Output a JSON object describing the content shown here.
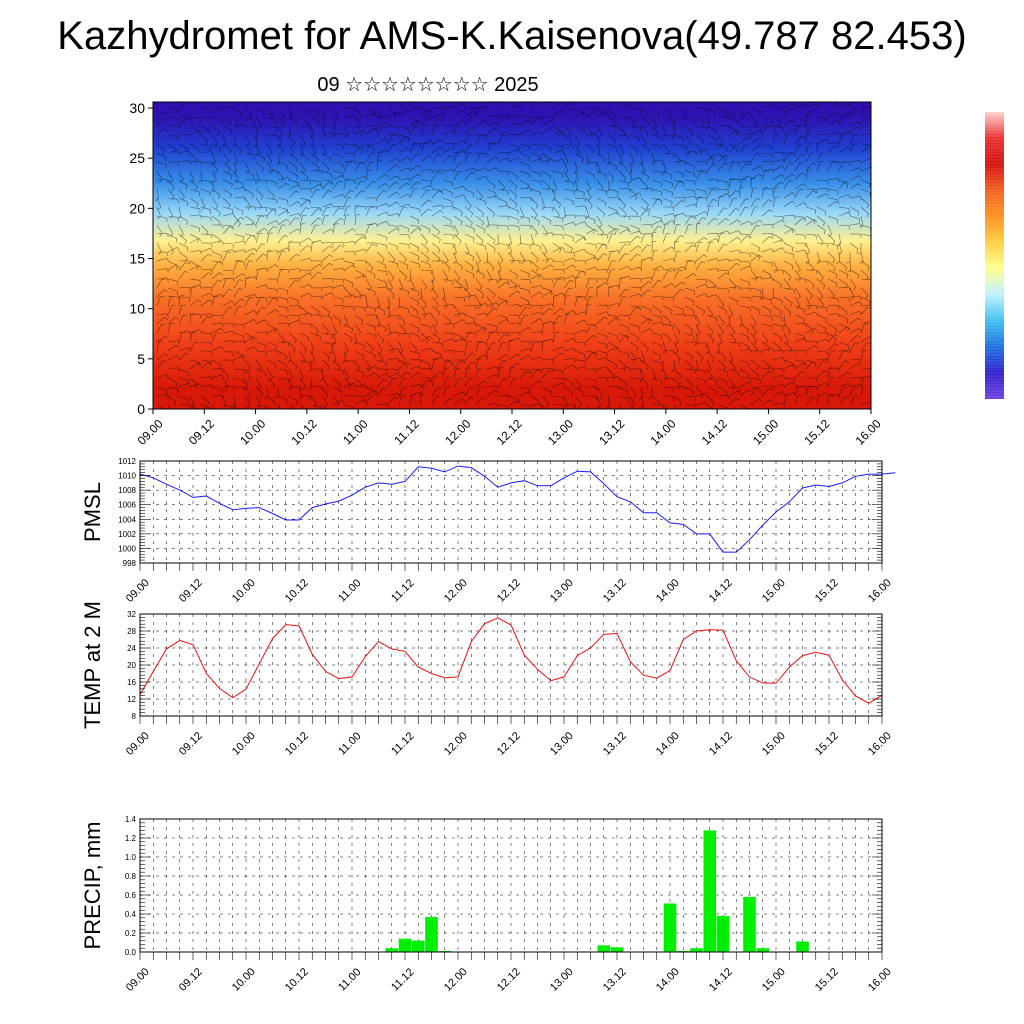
{
  "title": "Kazhydromet for AMS-K.Kaisenova(49.787 82.453)",
  "subtitle": "09 ☆☆☆☆☆☆☆☆ 2025",
  "colorbar_colors": [
    "#ffd0d0",
    "#e83030",
    "#d61010",
    "#f06020",
    "#ff9020",
    "#ffd040",
    "#ffff90",
    "#c0f0ff",
    "#40c0f0",
    "#1e70e0",
    "#3020d0",
    "#7040e0"
  ],
  "chart_data": [
    {
      "type": "heatmap",
      "title": "",
      "xlabel": "",
      "ylabel": "",
      "x_ticks": [
        "09.00",
        "09.12",
        "10.00",
        "10.12",
        "11.00",
        "11.12",
        "12.00",
        "12.12",
        "13.00",
        "13.12",
        "14.00",
        "14.12",
        "15.00",
        "15.12",
        "16.00"
      ],
      "y_ticks": [
        "0",
        "5",
        "10",
        "15",
        "20",
        "25",
        "30"
      ],
      "ylim": [
        0,
        30.6
      ],
      "color_bands_bottom_to_top": [
        "#d81808",
        "#f04018",
        "#f87028",
        "#ffb040",
        "#fff090",
        "#9ad8f8",
        "#3890e8",
        "#2040d0",
        "#3010b0"
      ],
      "band_edges": [
        0,
        4,
        9,
        13,
        15.5,
        18,
        21,
        24,
        28,
        30.6
      ],
      "overlay": "wind barbs",
      "legend": "colorbar right"
    },
    {
      "type": "line",
      "title": "",
      "ylabel": "PMSL",
      "ylim": [
        998,
        1012
      ],
      "y_ticks": [
        "998",
        "1000",
        "1002",
        "1004",
        "1006",
        "1008",
        "1010",
        "1012"
      ],
      "x_ticks": [
        "09.00",
        "09.12",
        "10.00",
        "10.12",
        "11.00",
        "11.12",
        "12.00",
        "12.12",
        "13.00",
        "13.12",
        "14.00",
        "14.12",
        "15.00",
        "15.12",
        "16.00"
      ],
      "color": "#1a1aff",
      "grid": true,
      "values": [
        1010.2,
        1009.7,
        1008.8,
        1008.0,
        1007.0,
        1007.2,
        1006.2,
        1005.3,
        1005.5,
        1005.6,
        1004.8,
        1003.9,
        1003.9,
        1005.6,
        1006.1,
        1006.5,
        1007.3,
        1008.4,
        1009.0,
        1008.8,
        1009.2,
        1011.2,
        1011.0,
        1010.5,
        1011.3,
        1011.1,
        1009.9,
        1008.4,
        1009.0,
        1009.3,
        1008.6,
        1008.6,
        1009.7,
        1010.6,
        1010.5,
        1008.9,
        1007.1,
        1006.4,
        1004.9,
        1004.9,
        1003.5,
        1003.3,
        1002.0,
        1002.0,
        999.5,
        999.5,
        1001.2,
        1003.2,
        1005.0,
        1006.4,
        1008.3,
        1008.7,
        1008.5,
        1009.0,
        1009.9,
        1010.2,
        1010.2,
        1010.4
      ]
    },
    {
      "type": "line",
      "title": "",
      "ylabel": "TEMP at 2 M",
      "ylim": [
        8,
        32
      ],
      "y_ticks": [
        "8",
        "12",
        "16",
        "20",
        "24",
        "28",
        "32"
      ],
      "x_ticks": [
        "09.00",
        "09.12",
        "10.00",
        "10.12",
        "11.00",
        "11.12",
        "12.00",
        "12.12",
        "13.00",
        "13.12",
        "14.00",
        "14.12",
        "15.00",
        "15.12",
        "16.00"
      ],
      "color": "#e81010",
      "grid": true,
      "values": [
        13.0,
        18.5,
        23.8,
        25.8,
        24.8,
        18.0,
        14.5,
        12.3,
        14.3,
        20.3,
        26.2,
        29.5,
        29.2,
        22.5,
        18.5,
        16.8,
        17.2,
        22.0,
        25.5,
        23.8,
        23.2,
        19.5,
        18.0,
        17.0,
        17.2,
        25.5,
        29.7,
        31.1,
        29.4,
        22.3,
        19.0,
        16.3,
        17.2,
        22.2,
        24.0,
        27.2,
        27.4,
        20.8,
        17.6,
        16.9,
        18.7,
        26.0,
        28.0,
        28.3,
        28.2,
        21.0,
        17.2,
        15.8,
        15.7,
        19.5,
        22.2,
        23.0,
        22.3,
        16.5,
        12.7,
        11.0,
        12.9
      ]
    },
    {
      "type": "bar",
      "title": "",
      "ylabel": "PRECIP, mm",
      "ylim": [
        0,
        1.4
      ],
      "y_ticks": [
        "0.0",
        "0.2",
        "0.4",
        "0.6",
        "0.8",
        "1.0",
        "1.2",
        "1.4"
      ],
      "x_ticks": [
        "09.00",
        "09.12",
        "10.00",
        "10.12",
        "11.00",
        "11.12",
        "12.00",
        "12.12",
        "13.00",
        "13.12",
        "14.00",
        "14.12",
        "15.00",
        "15.12",
        "16.00"
      ],
      "color": "#00ee00",
      "grid": true,
      "values": [
        0,
        0,
        0,
        0,
        0,
        0,
        0,
        0,
        0,
        0,
        0,
        0,
        0,
        0,
        0,
        0,
        0,
        0,
        0,
        0.04,
        0.14,
        0.12,
        0.37,
        0.01,
        0,
        0,
        0,
        0,
        0,
        0,
        0,
        0,
        0,
        0,
        0,
        0.07,
        0.05,
        0,
        0,
        0,
        0.51,
        0.01,
        0.04,
        1.28,
        0.38,
        0,
        0.58,
        0.04,
        0,
        0,
        0.11,
        0,
        0,
        0,
        0,
        0,
        0
      ]
    }
  ]
}
